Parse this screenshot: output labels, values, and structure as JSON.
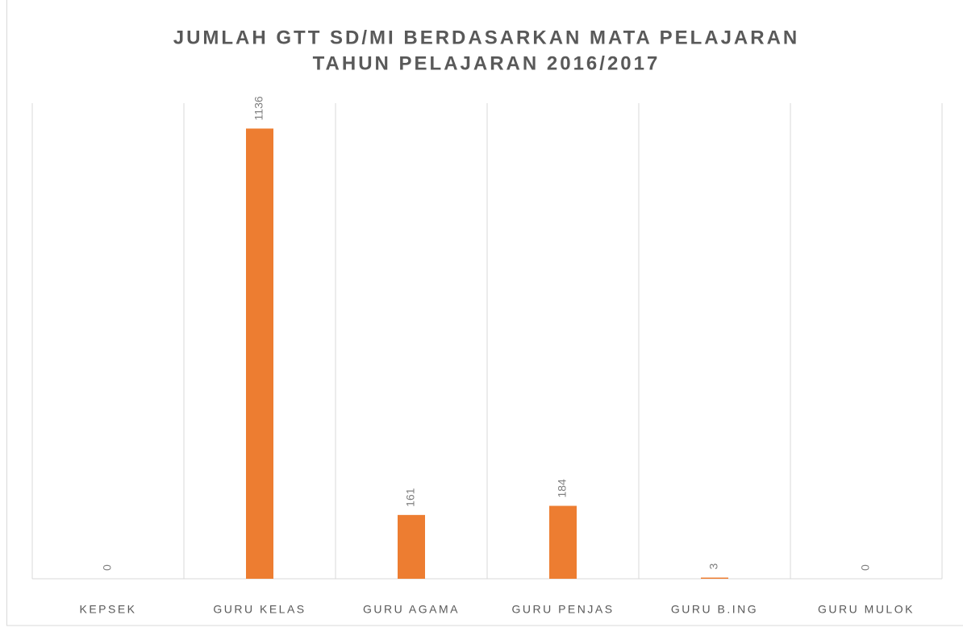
{
  "chart_data": {
    "type": "bar",
    "title": [
      "JUMLAH GTT SD/MI BERDASARKAN MATA PELAJARAN",
      "TAHUN PELAJARAN 2016/2017"
    ],
    "categories": [
      "KEPSEK",
      "GURU KELAS",
      "GURU AGAMA",
      "GURU PENJAS",
      "GURU B.ING",
      "GURU MULOK"
    ],
    "values": [
      0,
      1136,
      161,
      184,
      3,
      0
    ],
    "color": "#ed7d31",
    "ylim": [
      0,
      1200
    ],
    "data_labels": true
  }
}
